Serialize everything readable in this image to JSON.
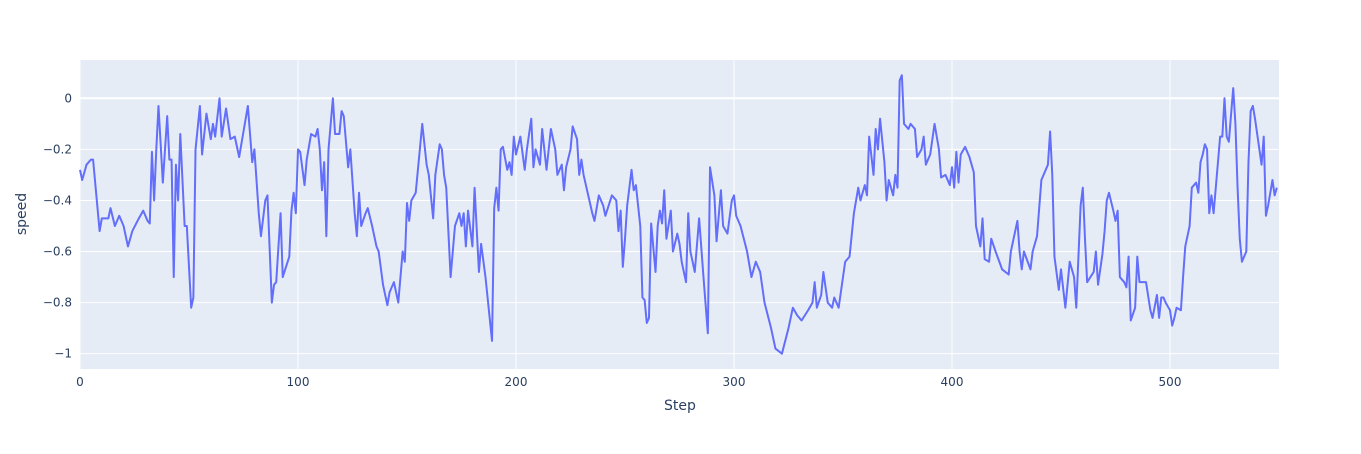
{
  "chart_data": {
    "type": "line",
    "x_label": "Step",
    "y_label": "speed",
    "color": "#636efa",
    "grid": true,
    "xlim": [
      0,
      550
    ],
    "ylim": [
      -1.06,
      0.15
    ],
    "xticks": [
      0,
      100,
      200,
      300,
      400,
      500
    ],
    "yticks": [
      {
        "value": -1,
        "label": "−1"
      },
      {
        "value": -0.8,
        "label": "−0.8"
      },
      {
        "value": -0.6,
        "label": "−0.6"
      },
      {
        "value": -0.4,
        "label": "−0.4"
      },
      {
        "value": -0.2,
        "label": "−0.2"
      },
      0
    ],
    "x": [
      0,
      1,
      3,
      5,
      6,
      9,
      10,
      13,
      14,
      16,
      18,
      20,
      22,
      24,
      27,
      29,
      31,
      32,
      33,
      34,
      35,
      36,
      38,
      40,
      41,
      42,
      43,
      44,
      45,
      46,
      48,
      49,
      51,
      52,
      53,
      55,
      56,
      58,
      60,
      61,
      62,
      64,
      65,
      67,
      69,
      71,
      73,
      75,
      77,
      79,
      80,
      82,
      83,
      85,
      86,
      88,
      89,
      90,
      92,
      93,
      96,
      97,
      98,
      99,
      100,
      101,
      103,
      104,
      106,
      108,
      109,
      110,
      111,
      112,
      113,
      114,
      116,
      117,
      119,
      120,
      121,
      123,
      124,
      126,
      127,
      128,
      129,
      131,
      132,
      134,
      136,
      137,
      139,
      141,
      142,
      144,
      146,
      148,
      149,
      150,
      151,
      152,
      154,
      157,
      159,
      160,
      162,
      163,
      165,
      166,
      167,
      168,
      170,
      172,
      174,
      175,
      176,
      177,
      178,
      180,
      181,
      183,
      184,
      186,
      189,
      190,
      191,
      192,
      193,
      194,
      196,
      197,
      198,
      199,
      200,
      202,
      204,
      205,
      207,
      208,
      209,
      211,
      212,
      214,
      216,
      218,
      219,
      221,
      222,
      223,
      225,
      226,
      228,
      229,
      230,
      231,
      235,
      236,
      238,
      240,
      241,
      244,
      246,
      247,
      248,
      249,
      250,
      251,
      252,
      253,
      254,
      255,
      257,
      258,
      259,
      260,
      261,
      262,
      264,
      265,
      266,
      267,
      268,
      269,
      271,
      272,
      274,
      275,
      276,
      278,
      279,
      280,
      282,
      284,
      286,
      288,
      289,
      291,
      292,
      294,
      295,
      297,
      299,
      300,
      301,
      303,
      306,
      308,
      310,
      312,
      314,
      317,
      319,
      322,
      325,
      327,
      329,
      331,
      334,
      336,
      337,
      338,
      340,
      341,
      343,
      345,
      346,
      348,
      351,
      353,
      355,
      357,
      358,
      360,
      361,
      362,
      364,
      365,
      366,
      367,
      369,
      370,
      371,
      373,
      374,
      375,
      376,
      377,
      378,
      380,
      381,
      383,
      384,
      386,
      387,
      388,
      390,
      392,
      394,
      395,
      397,
      399,
      400,
      401,
      402,
      403,
      404,
      406,
      408,
      410,
      411,
      413,
      414,
      415,
      417,
      418,
      420,
      423,
      426,
      427,
      428,
      430,
      431,
      432,
      433,
      436,
      437,
      439,
      441,
      444,
      445,
      446,
      447,
      449,
      450,
      452,
      454,
      456,
      457,
      459,
      460,
      461,
      462,
      465,
      466,
      467,
      469,
      470,
      471,
      472,
      474,
      475,
      476,
      477,
      479,
      480,
      481,
      482,
      484,
      485,
      486,
      489,
      491,
      492,
      494,
      495,
      496,
      497,
      498,
      500,
      501,
      502,
      503,
      505,
      506,
      507,
      509,
      510,
      512,
      513,
      514,
      515,
      516,
      517,
      518,
      519,
      520,
      522,
      523,
      524,
      525,
      526,
      527,
      529,
      530,
      531,
      532,
      533,
      535,
      536,
      537,
      538,
      539,
      541,
      542,
      543,
      544,
      545,
      547,
      548,
      549
    ],
    "values": [
      -0.28,
      -0.32,
      -0.26,
      -0.24,
      -0.24,
      -0.52,
      -0.47,
      -0.47,
      -0.43,
      -0.5,
      -0.46,
      -0.5,
      -0.58,
      -0.52,
      -0.47,
      -0.44,
      -0.48,
      -0.49,
      -0.21,
      -0.4,
      -0.2,
      -0.03,
      -0.33,
      -0.07,
      -0.24,
      -0.24,
      -0.7,
      -0.26,
      -0.4,
      -0.14,
      -0.5,
      -0.5,
      -0.82,
      -0.78,
      -0.2,
      -0.03,
      -0.22,
      -0.06,
      -0.16,
      -0.1,
      -0.15,
      0,
      -0.15,
      -0.04,
      -0.16,
      -0.15,
      -0.23,
      -0.13,
      -0.03,
      -0.25,
      -0.2,
      -0.45,
      -0.54,
      -0.4,
      -0.38,
      -0.8,
      -0.73,
      -0.72,
      -0.45,
      -0.7,
      -0.62,
      -0.44,
      -0.37,
      -0.45,
      -0.2,
      -0.21,
      -0.34,
      -0.24,
      -0.14,
      -0.15,
      -0.12,
      -0.2,
      -0.36,
      -0.25,
      -0.54,
      -0.2,
      0,
      -0.14,
      -0.14,
      -0.05,
      -0.07,
      -0.27,
      -0.2,
      -0.45,
      -0.54,
      -0.37,
      -0.5,
      -0.45,
      -0.43,
      -0.5,
      -0.58,
      -0.6,
      -0.73,
      -0.81,
      -0.76,
      -0.72,
      -0.8,
      -0.6,
      -0.64,
      -0.41,
      -0.48,
      -0.4,
      -0.37,
      -0.1,
      -0.26,
      -0.3,
      -0.47,
      -0.3,
      -0.18,
      -0.2,
      -0.3,
      -0.35,
      -0.7,
      -0.5,
      -0.45,
      -0.5,
      -0.45,
      -0.58,
      -0.44,
      -0.58,
      -0.35,
      -0.68,
      -0.57,
      -0.7,
      -0.95,
      -0.43,
      -0.35,
      -0.44,
      -0.2,
      -0.19,
      -0.28,
      -0.25,
      -0.3,
      -0.15,
      -0.22,
      -0.15,
      -0.28,
      -0.2,
      -0.08,
      -0.27,
      -0.2,
      -0.26,
      -0.12,
      -0.28,
      -0.12,
      -0.2,
      -0.3,
      -0.26,
      -0.36,
      -0.27,
      -0.2,
      -0.11,
      -0.16,
      -0.3,
      -0.24,
      -0.3,
      -0.45,
      -0.48,
      -0.38,
      -0.42,
      -0.46,
      -0.38,
      -0.4,
      -0.52,
      -0.44,
      -0.66,
      -0.55,
      -0.42,
      -0.35,
      -0.28,
      -0.36,
      -0.34,
      -0.5,
      -0.78,
      -0.79,
      -0.88,
      -0.86,
      -0.49,
      -0.68,
      -0.5,
      -0.44,
      -0.49,
      -0.36,
      -0.55,
      -0.44,
      -0.6,
      -0.53,
      -0.57,
      -0.64,
      -0.72,
      -0.45,
      -0.6,
      -0.68,
      -0.47,
      -0.7,
      -0.92,
      -0.27,
      -0.38,
      -0.56,
      -0.36,
      -0.5,
      -0.53,
      -0.4,
      -0.38,
      -0.46,
      -0.5,
      -0.6,
      -0.7,
      -0.64,
      -0.68,
      -0.8,
      -0.9,
      -0.98,
      -1.0,
      -0.9,
      -0.82,
      -0.85,
      -0.87,
      -0.83,
      -0.8,
      -0.72,
      -0.82,
      -0.77,
      -0.68,
      -0.8,
      -0.82,
      -0.78,
      -0.82,
      -0.64,
      -0.62,
      -0.45,
      -0.35,
      -0.4,
      -0.34,
      -0.38,
      -0.15,
      -0.3,
      -0.12,
      -0.2,
      -0.08,
      -0.25,
      -0.4,
      -0.32,
      -0.38,
      -0.3,
      -0.35,
      0.07,
      0.09,
      -0.1,
      -0.12,
      -0.1,
      -0.12,
      -0.23,
      -0.2,
      -0.15,
      -0.26,
      -0.22,
      -0.1,
      -0.2,
      -0.31,
      -0.3,
      -0.34,
      -0.27,
      -0.35,
      -0.21,
      -0.33,
      -0.22,
      -0.19,
      -0.23,
      -0.29,
      -0.5,
      -0.58,
      -0.47,
      -0.63,
      -0.64,
      -0.55,
      -0.6,
      -0.67,
      -0.69,
      -0.6,
      -0.56,
      -0.48,
      -0.6,
      -0.67,
      -0.6,
      -0.67,
      -0.6,
      -0.54,
      -0.32,
      -0.26,
      -0.13,
      -0.3,
      -0.62,
      -0.75,
      -0.67,
      -0.82,
      -0.64,
      -0.7,
      -0.82,
      -0.42,
      -0.35,
      -0.55,
      -0.72,
      -0.68,
      -0.6,
      -0.73,
      -0.61,
      -0.52,
      -0.4,
      -0.37,
      -0.44,
      -0.48,
      -0.44,
      -0.7,
      -0.72,
      -0.74,
      -0.62,
      -0.87,
      -0.82,
      -0.62,
      -0.72,
      -0.72,
      -0.83,
      -0.86,
      -0.77,
      -0.86,
      -0.78,
      -0.78,
      -0.8,
      -0.83,
      -0.89,
      -0.86,
      -0.82,
      -0.83,
      -0.7,
      -0.58,
      -0.5,
      -0.35,
      -0.33,
      -0.37,
      -0.25,
      -0.22,
      -0.18,
      -0.2,
      -0.45,
      -0.38,
      -0.45,
      -0.25,
      -0.15,
      -0.15,
      0.0,
      -0.15,
      -0.17,
      0.04,
      -0.1,
      -0.35,
      -0.55,
      -0.64,
      -0.6,
      -0.25,
      -0.05,
      -0.03,
      -0.08,
      -0.2,
      -0.26,
      -0.15,
      -0.46,
      -0.42,
      -0.32,
      -0.38,
      -0.35
    ]
  }
}
